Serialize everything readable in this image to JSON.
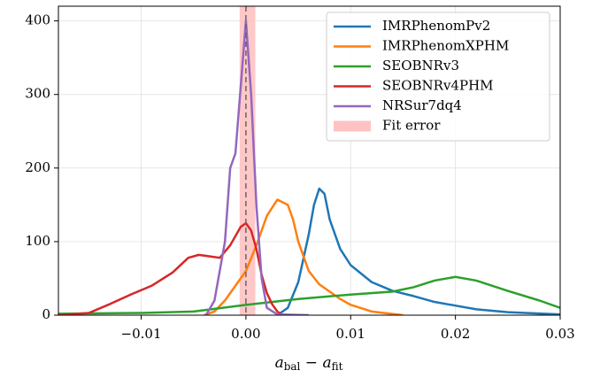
{
  "chart_data": {
    "type": "line",
    "x_label": {
      "a1": "a",
      "sub1": "bal",
      "op": " − ",
      "a2": "a",
      "sub2": "fit"
    },
    "xlim": [
      -0.0179,
      0.03
    ],
    "ylim": [
      0,
      420
    ],
    "xticks": [
      {
        "value": -0.01,
        "label": "−0.01"
      },
      {
        "value": 0,
        "label": "0.00"
      },
      0.01,
      0.02,
      0.03
    ],
    "yticks": [
      0,
      100,
      200,
      300,
      400
    ],
    "grid": true,
    "legend": "upper right",
    "fit_error": {
      "name": "Fit error",
      "range": [
        -0.0006,
        0.0009
      ],
      "color": "#ffc2c2"
    },
    "vline": 0,
    "series": [
      {
        "name": "IMRPhenomPv2",
        "color": "#1f77b4",
        "x": [
          0.003,
          0.004,
          0.005,
          0.006,
          0.0065,
          0.007,
          0.0075,
          0.008,
          0.009,
          0.01,
          0.012,
          0.014,
          0.016,
          0.018,
          0.02,
          0.022,
          0.025,
          0.03
        ],
        "values": [
          0,
          10,
          45,
          110,
          150,
          172,
          165,
          130,
          90,
          68,
          45,
          33,
          26,
          18,
          13,
          8,
          4,
          1
        ]
      },
      {
        "name": "IMRPhenomXPHM",
        "color": "#ff7f0e",
        "x": [
          -0.004,
          -0.003,
          -0.002,
          -0.001,
          0,
          0.001,
          0.002,
          0.003,
          0.004,
          0.0045,
          0.005,
          0.006,
          0.007,
          0.008,
          0.009,
          0.01,
          0.012,
          0.015
        ],
        "values": [
          0,
          5,
          20,
          40,
          60,
          95,
          135,
          157,
          150,
          130,
          100,
          60,
          42,
          32,
          22,
          14,
          5,
          0
        ]
      },
      {
        "name": "SEOBNRv3",
        "color": "#2ca02c",
        "x": [
          -0.0179,
          -0.01,
          -0.005,
          0,
          0.005,
          0.01,
          0.014,
          0.016,
          0.018,
          0.02,
          0.022,
          0.025,
          0.028,
          0.03
        ],
        "values": [
          2,
          3,
          5,
          14,
          22,
          28,
          32,
          38,
          47,
          52,
          47,
          33,
          20,
          10
        ]
      },
      {
        "name": "SEOBNRv4PHM",
        "color": "#d62728",
        "x": [
          -0.0179,
          -0.015,
          -0.013,
          -0.011,
          -0.009,
          -0.007,
          -0.0055,
          -0.0045,
          -0.0035,
          -0.0025,
          -0.0015,
          -0.0005,
          0,
          0.0005,
          0.001,
          0.0015,
          0.002,
          0.0025,
          0.003,
          0.0035
        ],
        "values": [
          0,
          3,
          15,
          28,
          40,
          58,
          78,
          82,
          80,
          78,
          95,
          120,
          125,
          115,
          90,
          55,
          30,
          15,
          5,
          0
        ]
      },
      {
        "name": "NRSur7dq4",
        "color": "#9467bd",
        "x": [
          -0.0038,
          -0.003,
          -0.002,
          -0.0015,
          -0.001,
          -0.0005,
          0,
          0.0005,
          0.001,
          0.0015,
          0.002,
          0.003,
          0.006
        ],
        "values": [
          0,
          20,
          100,
          200,
          220,
          310,
          400,
          300,
          150,
          50,
          10,
          1,
          0
        ]
      }
    ]
  }
}
